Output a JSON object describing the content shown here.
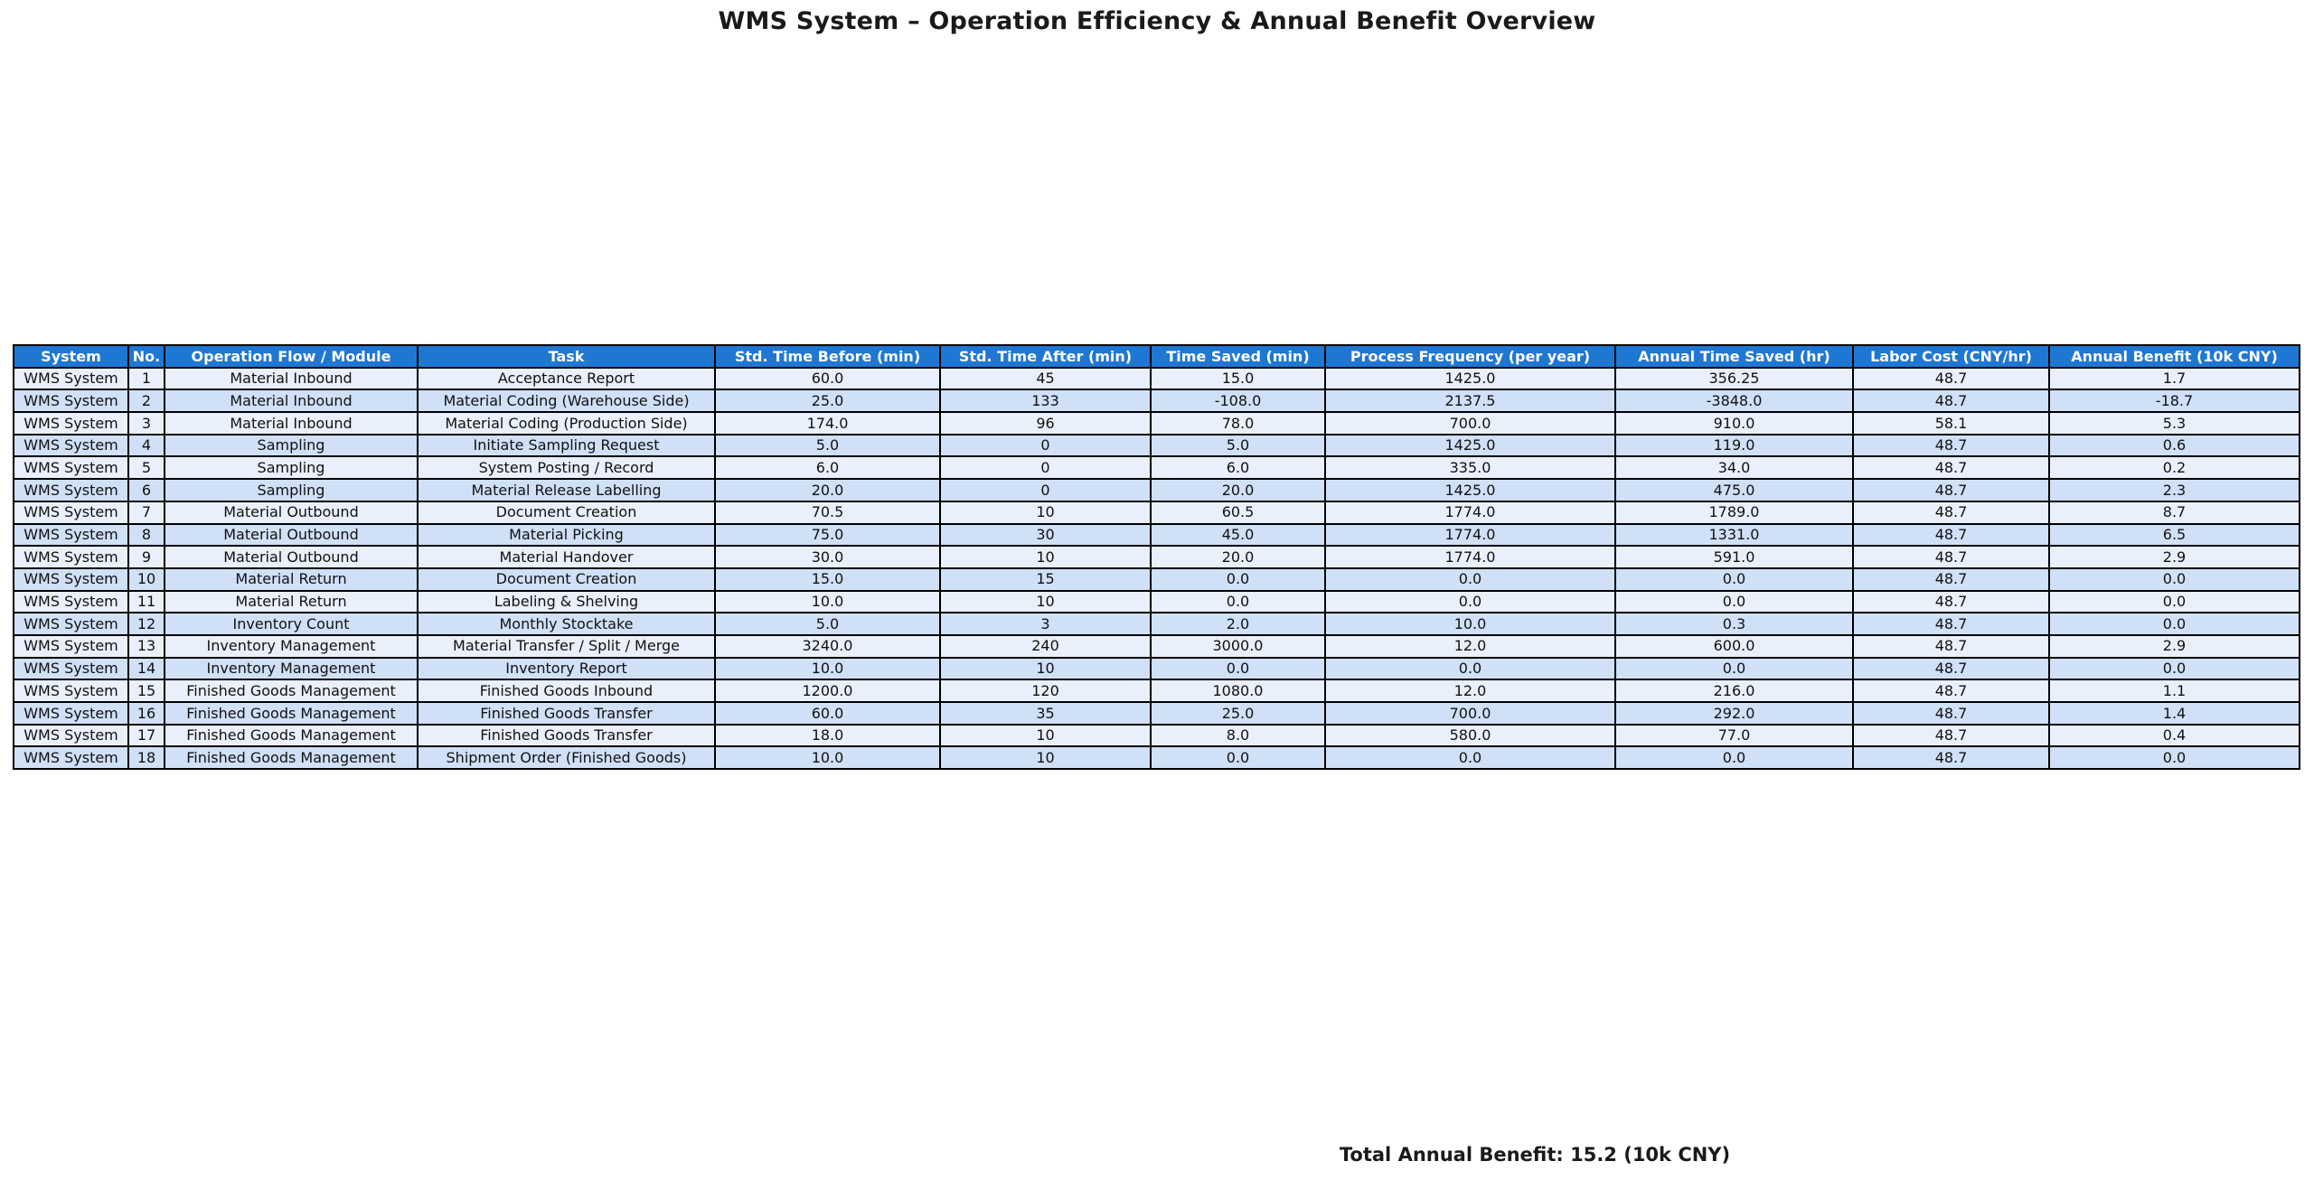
{
  "colors": {
    "header_bg": "#1f77d4",
    "header_text": "#ffffff",
    "row_odd_bg": "#e9effb",
    "row_even_bg": "#cfe0f7",
    "border_color": "#000000",
    "text_color": "#1a1a1a"
  },
  "chart_data": {
    "type": "table",
    "title": "WMS System – Operation Efficiency & Annual Benefit Overview",
    "footnote": "Total Annual Benefit: 15.2 (10k CNY)",
    "total_annual_benefit_10k_cny": 15.2,
    "columns": [
      "System",
      "No.",
      "Operation Flow / Module",
      "Task",
      "Std. Time Before (min)",
      "Std. Time After (min)",
      "Time Saved (min)",
      "Process Frequency (per year)",
      "Annual Time Saved (hr)",
      "Labor Cost (CNY/hr)",
      "Annual Benefit (10k CNY)"
    ],
    "rows": [
      [
        "WMS System",
        "1",
        "Material Inbound",
        "Acceptance Report",
        "60.0",
        "45",
        "15.0",
        "1425.0",
        "356.25",
        "48.7",
        "1.7"
      ],
      [
        "WMS System",
        "2",
        "Material Inbound",
        "Material Coding (Warehouse Side)",
        "25.0",
        "133",
        "-108.0",
        "2137.5",
        "-3848.0",
        "48.7",
        "-18.7"
      ],
      [
        "WMS System",
        "3",
        "Material Inbound",
        "Material Coding (Production Side)",
        "174.0",
        "96",
        "78.0",
        "700.0",
        "910.0",
        "58.1",
        "5.3"
      ],
      [
        "WMS System",
        "4",
        "Sampling",
        "Initiate Sampling Request",
        "5.0",
        "0",
        "5.0",
        "1425.0",
        "119.0",
        "48.7",
        "0.6"
      ],
      [
        "WMS System",
        "5",
        "Sampling",
        "System Posting / Record",
        "6.0",
        "0",
        "6.0",
        "335.0",
        "34.0",
        "48.7",
        "0.2"
      ],
      [
        "WMS System",
        "6",
        "Sampling",
        "Material Release Labelling",
        "20.0",
        "0",
        "20.0",
        "1425.0",
        "475.0",
        "48.7",
        "2.3"
      ],
      [
        "WMS System",
        "7",
        "Material Outbound",
        "Document Creation",
        "70.5",
        "10",
        "60.5",
        "1774.0",
        "1789.0",
        "48.7",
        "8.7"
      ],
      [
        "WMS System",
        "8",
        "Material Outbound",
        "Material Picking",
        "75.0",
        "30",
        "45.0",
        "1774.0",
        "1331.0",
        "48.7",
        "6.5"
      ],
      [
        "WMS System",
        "9",
        "Material Outbound",
        "Material Handover",
        "30.0",
        "10",
        "20.0",
        "1774.0",
        "591.0",
        "48.7",
        "2.9"
      ],
      [
        "WMS System",
        "10",
        "Material Return",
        "Document Creation",
        "15.0",
        "15",
        "0.0",
        "0.0",
        "0.0",
        "48.7",
        "0.0"
      ],
      [
        "WMS System",
        "11",
        "Material Return",
        "Labeling & Shelving",
        "10.0",
        "10",
        "0.0",
        "0.0",
        "0.0",
        "48.7",
        "0.0"
      ],
      [
        "WMS System",
        "12",
        "Inventory Count",
        "Monthly Stocktake",
        "5.0",
        "3",
        "2.0",
        "10.0",
        "0.3",
        "48.7",
        "0.0"
      ],
      [
        "WMS System",
        "13",
        "Inventory Management",
        "Material Transfer / Split / Merge",
        "3240.0",
        "240",
        "3000.0",
        "12.0",
        "600.0",
        "48.7",
        "2.9"
      ],
      [
        "WMS System",
        "14",
        "Inventory Management",
        "Inventory Report",
        "10.0",
        "10",
        "0.0",
        "0.0",
        "0.0",
        "48.7",
        "0.0"
      ],
      [
        "WMS System",
        "15",
        "Finished Goods Management",
        "Finished Goods Inbound",
        "1200.0",
        "120",
        "1080.0",
        "12.0",
        "216.0",
        "48.7",
        "1.1"
      ],
      [
        "WMS System",
        "16",
        "Finished Goods Management",
        "Finished Goods Transfer",
        "60.0",
        "35",
        "25.0",
        "700.0",
        "292.0",
        "48.7",
        "1.4"
      ],
      [
        "WMS System",
        "17",
        "Finished Goods Management",
        "Finished Goods Transfer",
        "18.0",
        "10",
        "8.0",
        "580.0",
        "77.0",
        "48.7",
        "0.4"
      ],
      [
        "WMS System",
        "18",
        "Finished Goods Management",
        "Shipment Order (Finished Goods)",
        "10.0",
        "10",
        "0.0",
        "0.0",
        "0.0",
        "48.7",
        "0.0"
      ]
    ]
  }
}
